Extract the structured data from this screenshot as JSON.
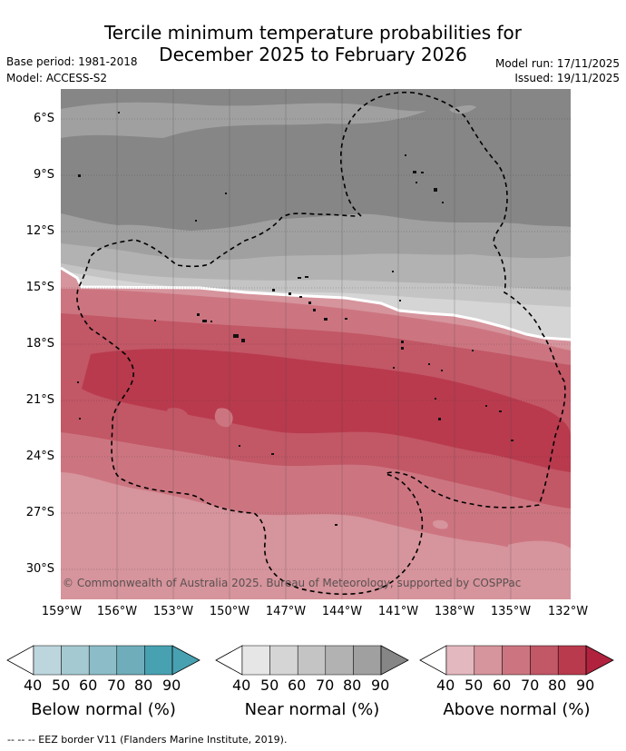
{
  "title_line1": "Tercile minimum temperature probabilities for",
  "title_line2": "December 2025 to February 2026",
  "base_period": "Base period: 1981-2018",
  "model": "Model: ACCESS-S2",
  "model_run": "Model run: 17/11/2025",
  "issued": "Issued: 19/11/2025",
  "copyright": "© Commonwealth of Australia 2025. Bureau of Meteorology, supported by COSPPac",
  "latitudes": [
    "6°S",
    "9°S",
    "12°S",
    "15°S",
    "18°S",
    "21°S",
    "24°S",
    "27°S",
    "30°S"
  ],
  "longitudes": [
    "159°W",
    "156°W",
    "153°W",
    "150°W",
    "147°W",
    "144°W",
    "141°W",
    "138°W",
    "135°W",
    "132°W"
  ],
  "colorbars": [
    {
      "title": "Below normal (%)",
      "ticks": [
        "40",
        "50",
        "60",
        "70",
        "80",
        "90"
      ],
      "colors": [
        "#bdd5dc",
        "#a5c9d1",
        "#8cbcc7",
        "#6fadbb",
        "#48a1b1"
      ]
    },
    {
      "title": "Near normal (%)",
      "ticks": [
        "40",
        "50",
        "60",
        "70",
        "80",
        "90"
      ],
      "colors": [
        "#e6e6e6",
        "#d5d5d5",
        "#c4c4c4",
        "#b2b2b2",
        "#a0a0a0"
      ],
      "end_color": "#868686"
    },
    {
      "title": "Above normal (%)",
      "ticks": [
        "40",
        "50",
        "60",
        "70",
        "80",
        "90"
      ],
      "colors": [
        "#e3b8be",
        "#d6949c",
        "#cc7580",
        "#c25766",
        "#b93a4d"
      ],
      "end_color": "#b0223e"
    }
  ],
  "eez_note": "--  --  -- EEZ border V11 (Flanders Marine Institute, 2019).",
  "colors": {
    "near_90": "#868686",
    "near_80": "#a0a0a0",
    "near_70": "#b2b2b2",
    "near_60": "#c4c4c4",
    "near_50": "#d5d5d5",
    "above_50": "#d6949c",
    "above_60": "#cc7580",
    "above_70": "#c25766",
    "above_80": "#b93a4d"
  }
}
